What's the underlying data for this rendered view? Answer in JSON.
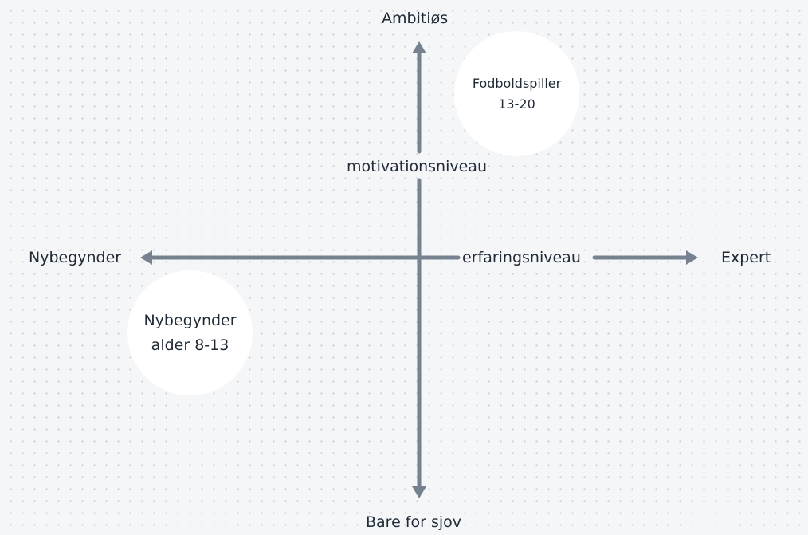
{
  "axes": {
    "vertical": {
      "name": "motivationsniveau",
      "top_label": "Ambitiøs",
      "bottom_label": "Bare for sjov"
    },
    "horizontal": {
      "name": "erfaringsniveau",
      "left_label": "Nybegynder",
      "right_label": "Expert"
    }
  },
  "segments": [
    {
      "line1": "Fodboldspiller",
      "line2": "13-20"
    },
    {
      "line1": "Nybegynder",
      "line2": "alder 8-13"
    }
  ],
  "colors": {
    "axis": "#76828f",
    "text": "#1f2a36",
    "circle": "#ffffff",
    "background": "#f4f6f8"
  }
}
